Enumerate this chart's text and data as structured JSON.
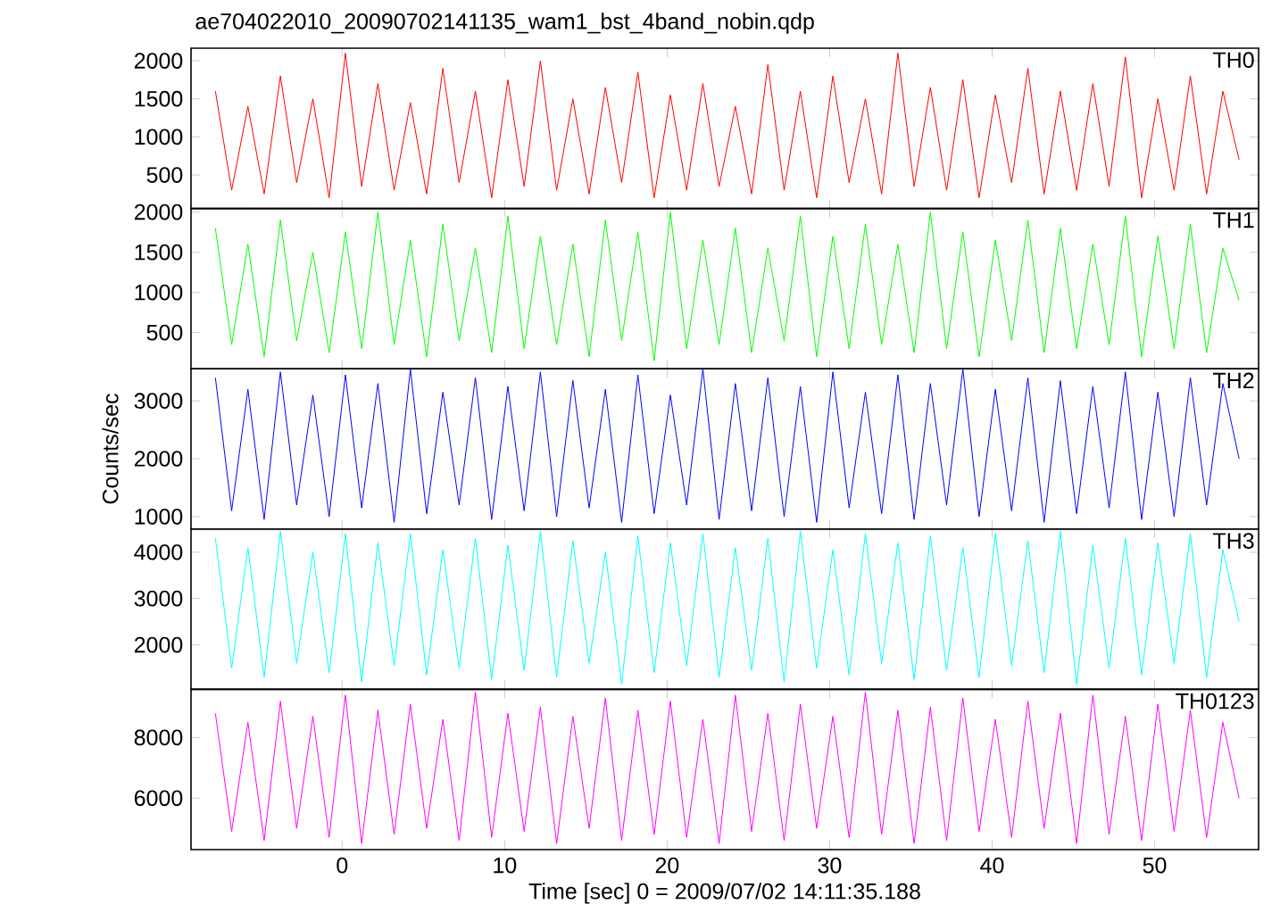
{
  "chart_data": [
    {
      "type": "line",
      "title": "ae704022010_20090702141135_wam1_bst_4band_nobin.qdp",
      "tick_labels": "y",
      "marker": "none",
      "xlim": [
        -9.3,
        56.4
      ],
      "xticks": [
        0,
        10,
        20,
        30,
        40,
        50
      ],
      "ylim": [
        60,
        2165
      ],
      "yticks": [
        500,
        1000,
        1500,
        2000
      ],
      "x": [
        -7.8,
        -6.8,
        -5.8,
        -4.8,
        -3.8,
        -2.8,
        -1.8,
        -0.8,
        0.2,
        1.2,
        2.2,
        3.2,
        4.2,
        5.2,
        6.2,
        7.2,
        8.2,
        9.2,
        10.2,
        11.2,
        12.2,
        13.2,
        14.2,
        15.2,
        16.2,
        17.2,
        18.2,
        19.2,
        20.2,
        21.2,
        22.2,
        23.2,
        24.2,
        25.2,
        26.2,
        27.2,
        28.2,
        29.2,
        30.2,
        31.2,
        32.2,
        33.2,
        34.2,
        35.2,
        36.2,
        37.2,
        38.2,
        39.2,
        40.2,
        41.2,
        42.2,
        43.2,
        44.2,
        45.2,
        46.2,
        47.2,
        48.2,
        49.2,
        50.2,
        51.2,
        52.2,
        53.2,
        54.2,
        55.2
      ],
      "series": [
        {
          "name": "TH0",
          "color": "#ff0000",
          "values": [
            1600,
            300,
            1400,
            250,
            1800,
            400,
            1500,
            200,
            2100,
            350,
            1700,
            300,
            1450,
            250,
            1900,
            400,
            1600,
            200,
            1750,
            350,
            2000,
            300,
            1500,
            250,
            1650,
            400,
            1850,
            200,
            1550,
            300,
            1700,
            350,
            1400,
            250,
            1950,
            300,
            1600,
            200,
            1800,
            400,
            1500,
            250,
            2100,
            350,
            1650,
            300,
            1750,
            200,
            1550,
            400,
            1900,
            250,
            1600,
            300,
            1700,
            350,
            2050,
            200,
            1500,
            300,
            1800,
            250,
            1600,
            700
          ]
        }
      ]
    },
    {
      "type": "line",
      "tick_labels": "y",
      "marker": "none",
      "xlim": [
        -9.3,
        56.4
      ],
      "xticks": [
        0,
        10,
        20,
        30,
        40,
        50
      ],
      "ylim": [
        50,
        2045
      ],
      "yticks": [
        500,
        1000,
        1500,
        2000
      ],
      "x": [
        -7.8,
        -6.8,
        -5.8,
        -4.8,
        -3.8,
        -2.8,
        -1.8,
        -0.8,
        0.2,
        1.2,
        2.2,
        3.2,
        4.2,
        5.2,
        6.2,
        7.2,
        8.2,
        9.2,
        10.2,
        11.2,
        12.2,
        13.2,
        14.2,
        15.2,
        16.2,
        17.2,
        18.2,
        19.2,
        20.2,
        21.2,
        22.2,
        23.2,
        24.2,
        25.2,
        26.2,
        27.2,
        28.2,
        29.2,
        30.2,
        31.2,
        32.2,
        33.2,
        34.2,
        35.2,
        36.2,
        37.2,
        38.2,
        39.2,
        40.2,
        41.2,
        42.2,
        43.2,
        44.2,
        45.2,
        46.2,
        47.2,
        48.2,
        49.2,
        50.2,
        51.2,
        52.2,
        53.2,
        54.2,
        55.2
      ],
      "series": [
        {
          "name": "TH1",
          "color": "#00ff00",
          "values": [
            1800,
            350,
            1600,
            200,
            1900,
            400,
            1500,
            250,
            1750,
            300,
            2000,
            350,
            1650,
            200,
            1850,
            400,
            1550,
            250,
            1950,
            300,
            1700,
            350,
            1600,
            200,
            1900,
            400,
            1750,
            150,
            2000,
            300,
            1650,
            350,
            1800,
            250,
            1550,
            400,
            1950,
            200,
            1700,
            300,
            1850,
            350,
            1600,
            250,
            2000,
            300,
            1750,
            200,
            1650,
            400,
            1900,
            250,
            1800,
            300,
            1600,
            350,
            1950,
            200,
            1700,
            300,
            1850,
            250,
            1550,
            900
          ]
        }
      ]
    },
    {
      "type": "line",
      "ylabel": "Counts/sec",
      "tick_labels": "y",
      "marker": "none",
      "xlim": [
        -9.3,
        56.4
      ],
      "xticks": [
        0,
        10,
        20,
        30,
        40,
        50
      ],
      "ylim": [
        785,
        3555
      ],
      "yticks": [
        1000,
        2000,
        3000
      ],
      "x": [
        -7.8,
        -6.8,
        -5.8,
        -4.8,
        -3.8,
        -2.8,
        -1.8,
        -0.8,
        0.2,
        1.2,
        2.2,
        3.2,
        4.2,
        5.2,
        6.2,
        7.2,
        8.2,
        9.2,
        10.2,
        11.2,
        12.2,
        13.2,
        14.2,
        15.2,
        16.2,
        17.2,
        18.2,
        19.2,
        20.2,
        21.2,
        22.2,
        23.2,
        24.2,
        25.2,
        26.2,
        27.2,
        28.2,
        29.2,
        30.2,
        31.2,
        32.2,
        33.2,
        34.2,
        35.2,
        36.2,
        37.2,
        38.2,
        39.2,
        40.2,
        41.2,
        42.2,
        43.2,
        44.2,
        45.2,
        46.2,
        47.2,
        48.2,
        49.2,
        50.2,
        51.2,
        52.2,
        53.2,
        54.2,
        55.2
      ],
      "series": [
        {
          "name": "TH2",
          "color": "#0000ff",
          "values": [
            3400,
            1100,
            3200,
            950,
            3500,
            1200,
            3100,
            1000,
            3450,
            1150,
            3300,
            900,
            3550,
            1050,
            3150,
            1200,
            3400,
            950,
            3250,
            1100,
            3500,
            1000,
            3350,
            1150,
            3200,
            900,
            3450,
            1050,
            3100,
            1200,
            3550,
            950,
            3300,
            1100,
            3400,
            1000,
            3250,
            900,
            3500,
            1150,
            3150,
            1050,
            3450,
            950,
            3300,
            1200,
            3550,
            1000,
            3200,
            1100,
            3400,
            900,
            3350,
            1050,
            3250,
            1150,
            3500,
            950,
            3150,
            1000,
            3400,
            1200,
            3300,
            2000
          ]
        }
      ]
    },
    {
      "type": "line",
      "tick_labels": "y",
      "marker": "none",
      "xlim": [
        -9.3,
        56.4
      ],
      "xticks": [
        0,
        10,
        20,
        30,
        40,
        50
      ],
      "ylim": [
        1040,
        4500
      ],
      "yticks": [
        2000,
        3000,
        4000
      ],
      "x": [
        -7.8,
        -6.8,
        -5.8,
        -4.8,
        -3.8,
        -2.8,
        -1.8,
        -0.8,
        0.2,
        1.2,
        2.2,
        3.2,
        4.2,
        5.2,
        6.2,
        7.2,
        8.2,
        9.2,
        10.2,
        11.2,
        12.2,
        13.2,
        14.2,
        15.2,
        16.2,
        17.2,
        18.2,
        19.2,
        20.2,
        21.2,
        22.2,
        23.2,
        24.2,
        25.2,
        26.2,
        27.2,
        28.2,
        29.2,
        30.2,
        31.2,
        32.2,
        33.2,
        34.2,
        35.2,
        36.2,
        37.2,
        38.2,
        39.2,
        40.2,
        41.2,
        42.2,
        43.2,
        44.2,
        45.2,
        46.2,
        47.2,
        48.2,
        49.2,
        50.2,
        51.2,
        52.2,
        53.2,
        54.2,
        55.2
      ],
      "series": [
        {
          "name": "TH3",
          "color": "#00ffff",
          "values": [
            4300,
            1500,
            4100,
            1300,
            4450,
            1600,
            4000,
            1400,
            4400,
            1200,
            4200,
            1550,
            4400,
            1350,
            4050,
            1500,
            4300,
            1250,
            4150,
            1450,
            4450,
            1300,
            4250,
            1600,
            4000,
            1150,
            4350,
            1400,
            4200,
            1550,
            4400,
            1300,
            4100,
            1450,
            4300,
            1200,
            4450,
            1500,
            4050,
            1350,
            4400,
            1600,
            4200,
            1250,
            4350,
            1450,
            4100,
            1300,
            4400,
            1550,
            4250,
            1400,
            4450,
            1150,
            4150,
            1500,
            4300,
            1350,
            4200,
            1600,
            4400,
            1300,
            4050,
            2500
          ]
        }
      ]
    },
    {
      "type": "line",
      "xlabel": "Time [sec] 0 = 2009/07/02 14:11:35.188",
      "marker": "none",
      "xlim": [
        -9.3,
        56.4
      ],
      "xticks": [
        0,
        10,
        20,
        30,
        40,
        50
      ],
      "ylim": [
        4300,
        9590
      ],
      "yticks": [
        6000,
        8000
      ],
      "x": [
        -7.8,
        -6.8,
        -5.8,
        -4.8,
        -3.8,
        -2.8,
        -1.8,
        -0.8,
        0.2,
        1.2,
        2.2,
        3.2,
        4.2,
        5.2,
        6.2,
        7.2,
        8.2,
        9.2,
        10.2,
        11.2,
        12.2,
        13.2,
        14.2,
        15.2,
        16.2,
        17.2,
        18.2,
        19.2,
        20.2,
        21.2,
        22.2,
        23.2,
        24.2,
        25.2,
        26.2,
        27.2,
        28.2,
        29.2,
        30.2,
        31.2,
        32.2,
        33.2,
        34.2,
        35.2,
        36.2,
        37.2,
        38.2,
        39.2,
        40.2,
        41.2,
        42.2,
        43.2,
        44.2,
        45.2,
        46.2,
        47.2,
        48.2,
        49.2,
        50.2,
        51.2,
        52.2,
        53.2,
        54.2,
        55.2
      ],
      "series": [
        {
          "name": "TH0123",
          "color": "#ff00ff",
          "values": [
            8800,
            4900,
            8500,
            4600,
            9200,
            5000,
            8700,
            4700,
            9400,
            4500,
            8900,
            4800,
            9100,
            5000,
            8600,
            4600,
            9500,
            4700,
            8800,
            4900,
            9000,
            4500,
            8700,
            5000,
            9300,
            4600,
            8900,
            4800,
            9200,
            4700,
            8600,
            4500,
            9400,
            4900,
            8800,
            4600,
            9100,
            5000,
            8700,
            4700,
            9500,
            4800,
            8900,
            4500,
            9000,
            4600,
            9300,
            4900,
            8600,
            4700,
            9200,
            5000,
            8800,
            4500,
            9400,
            4800,
            8700,
            4600,
            9100,
            4900,
            8900,
            4700,
            8500,
            6000
          ]
        }
      ]
    }
  ]
}
